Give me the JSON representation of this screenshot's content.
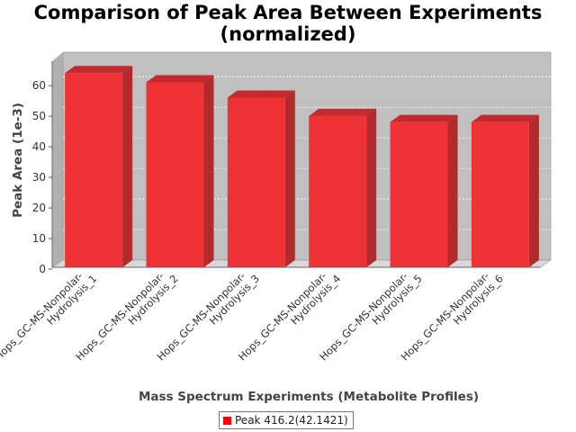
{
  "chart_data": {
    "type": "bar",
    "title_line1": "Comparison of Peak Area Between Experiments",
    "title_line2": "(normalized)",
    "xlabel": "Mass Spectrum Experiments (Metabolite Profiles)",
    "ylabel": "Peak Area (1e-3)",
    "categories": [
      [
        "Hops_GC-MS-Nonpolar-",
        "Hydrolysis_1"
      ],
      [
        "Hops_GC-MS-Nonpolar-",
        "Hydrolysis_2"
      ],
      [
        "Hops_GC-MS-Nonpolar-",
        "Hydrolysis_3"
      ],
      [
        "Hops_GC-MS-Nonpolar-",
        "Hydrolysis_4"
      ],
      [
        "Hops_GC-MS-Nonpolar-",
        "Hydrolysis_5"
      ],
      [
        "Hops_GC-MS-Nonpolar-",
        "Hydrolysis_6"
      ]
    ],
    "series": [
      {
        "name": "Peak 416.2(42.1421)",
        "values": [
          63.5,
          60.5,
          55.5,
          49.5,
          47.5,
          47.5
        ],
        "color": "#ff0000"
      }
    ],
    "yticks": [
      0,
      10,
      20,
      30,
      40,
      50,
      60
    ],
    "ylim": [
      0,
      68
    ],
    "grid": true,
    "legend_position": "bottom-center",
    "plot_background": "#c0c0c0"
  }
}
